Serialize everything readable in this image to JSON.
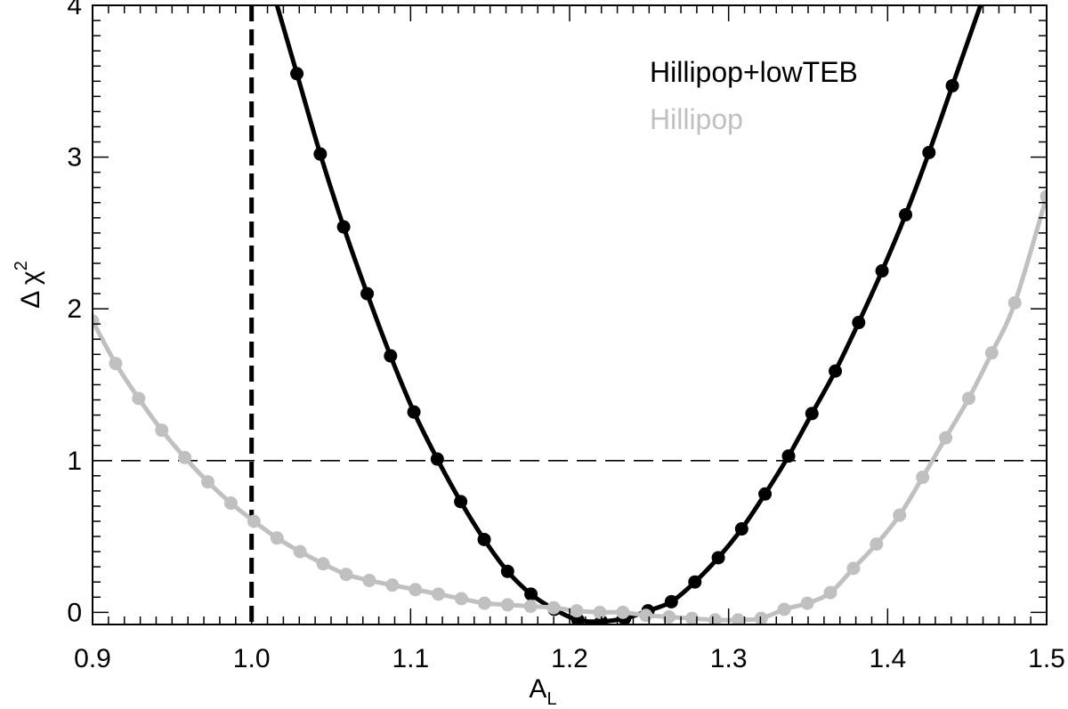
{
  "chart_data": {
    "type": "line",
    "xlabel": "A",
    "xlabel_sub": "L",
    "ylabel": "Δ χ",
    "ylabel_sup": "2",
    "xlim": [
      0.9,
      1.5
    ],
    "ylim": [
      -0.08,
      4.0
    ],
    "x_ticks": [
      0.9,
      1.0,
      1.1,
      1.2,
      1.3,
      1.4,
      1.5
    ],
    "x_tick_labels": [
      "0.9",
      "1.0",
      "1.1",
      "1.2",
      "1.3",
      "1.4",
      "1.5"
    ],
    "y_ticks": [
      0,
      1,
      2,
      3,
      4
    ],
    "y_tick_labels": [
      "0",
      "1",
      "2",
      "3",
      "4"
    ],
    "reference_lines": [
      {
        "orientation": "horizontal",
        "value": 1.0,
        "style": "dashed"
      },
      {
        "orientation": "vertical",
        "value": 1.0,
        "style": "dashed-bold"
      }
    ],
    "legend_position": "top-right",
    "series": [
      {
        "name": "Hillipop+lowTEB",
        "color": "#000000",
        "x": [
          1.0285,
          1.0432,
          1.0579,
          1.0727,
          1.0874,
          1.1021,
          1.1168,
          1.1315,
          1.1463,
          1.161,
          1.1757,
          1.1904,
          1.2052,
          1.2199,
          1.2346,
          1.2493,
          1.264,
          1.2788,
          1.2935,
          1.3082,
          1.3229,
          1.3377,
          1.3524,
          1.3671,
          1.3818,
          1.3965,
          1.4113,
          1.426,
          1.4407
        ],
        "y": [
          3.55,
          3.02,
          2.54,
          2.1,
          1.69,
          1.32,
          1.01,
          0.73,
          0.48,
          0.27,
          0.12,
          0.02,
          -0.05,
          -0.06,
          -0.04,
          0.01,
          0.07,
          0.2,
          0.36,
          0.55,
          0.78,
          1.03,
          1.31,
          1.59,
          1.91,
          2.25,
          2.62,
          3.03,
          3.47
        ]
      },
      {
        "name": "Hillipop",
        "color": "#c0c0c0",
        "x": [
          0.9,
          0.9145,
          0.929,
          0.9435,
          0.958,
          0.9725,
          0.987,
          1.0015,
          1.016,
          1.0305,
          1.045,
          1.0595,
          1.074,
          1.0885,
          1.103,
          1.1175,
          1.132,
          1.1465,
          1.161,
          1.1755,
          1.19,
          1.2045,
          1.219,
          1.2335,
          1.248,
          1.2625,
          1.277,
          1.2915,
          1.306,
          1.3205,
          1.335,
          1.3495,
          1.364,
          1.3785,
          1.393,
          1.4075,
          1.422,
          1.4365,
          1.451,
          1.4655,
          1.48,
          1.5
        ],
        "y": [
          1.92,
          1.64,
          1.41,
          1.2,
          1.02,
          0.86,
          0.72,
          0.6,
          0.49,
          0.4,
          0.32,
          0.25,
          0.21,
          0.18,
          0.15,
          0.12,
          0.09,
          0.06,
          0.05,
          0.04,
          0.03,
          0.01,
          0.0,
          0.0,
          -0.02,
          -0.03,
          -0.04,
          -0.05,
          -0.05,
          -0.04,
          0.02,
          0.06,
          0.13,
          0.29,
          0.45,
          0.64,
          0.89,
          1.15,
          1.41,
          1.71,
          2.04,
          2.74
        ]
      }
    ]
  }
}
